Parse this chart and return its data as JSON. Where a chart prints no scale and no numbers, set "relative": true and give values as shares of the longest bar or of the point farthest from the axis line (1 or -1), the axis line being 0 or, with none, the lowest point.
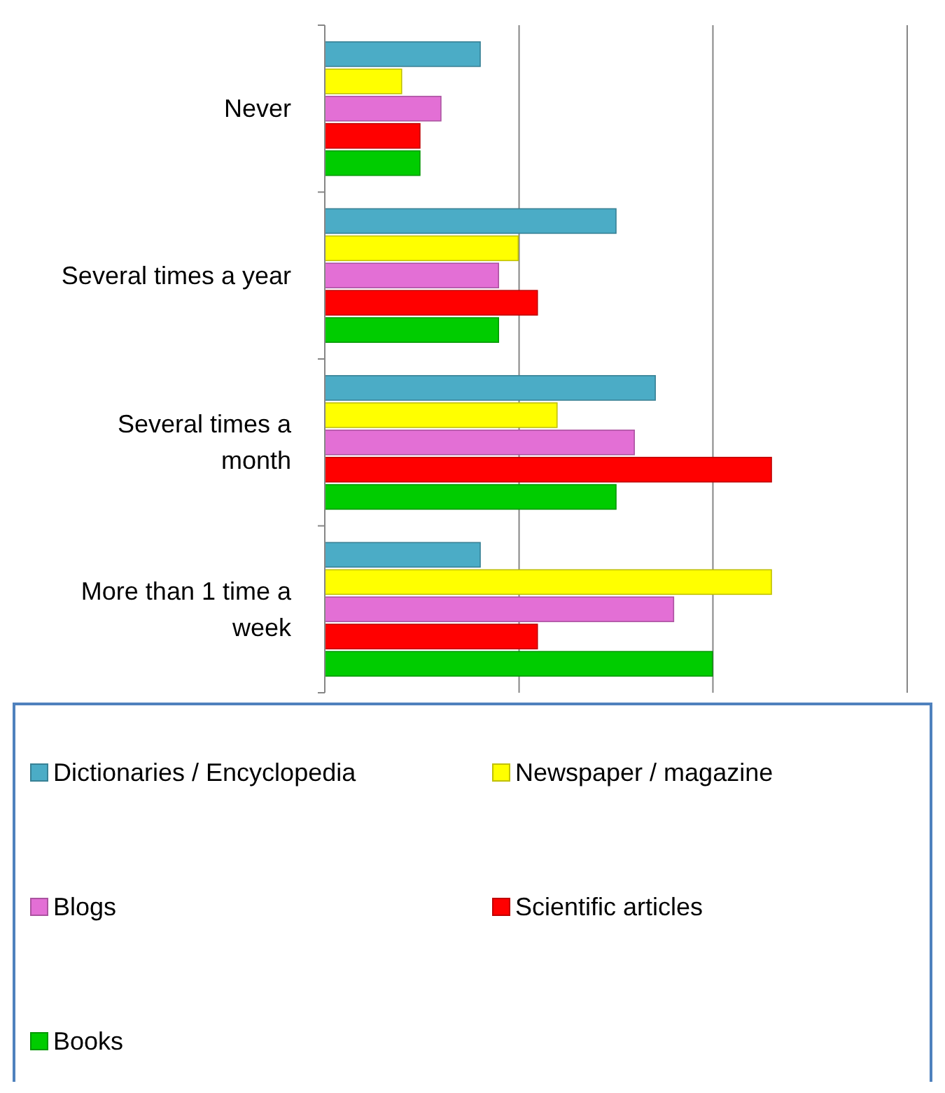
{
  "chart_data": {
    "type": "bar",
    "orientation": "horizontal",
    "relative": true,
    "ref_lines": [
      {
        "axis": "x",
        "value": 0.435,
        "color": "#868686"
      },
      {
        "axis": "x",
        "value": 0.869,
        "color": "#868686"
      },
      {
        "axis": "x",
        "value": 1.304,
        "color": "#868686"
      }
    ],
    "legend": "bottom",
    "categories": [
      "Never",
      "Several times a year",
      "Several times a month",
      "More than 1 time a week"
    ],
    "series": [
      {
        "name": "Dictionaries / Encyclopedia",
        "color": "#4bacc6",
        "values": [
          0.348,
          0.652,
          0.74,
          0.348
        ]
      },
      {
        "name": "Newspaper / magazine",
        "color": "#ffff00",
        "values": [
          0.172,
          0.433,
          0.52,
          1
        ]
      },
      {
        "name": "Blogs",
        "color": "#e36fd5",
        "values": [
          0.26,
          0.389,
          0.693,
          0.781
        ]
      },
      {
        "name": "Scientific articles",
        "color": "#ff0000",
        "values": [
          0.213,
          0.476,
          1,
          0.476
        ]
      },
      {
        "name": "Books",
        "color": "#00cc00",
        "values": [
          0.213,
          0.389,
          0.652,
          0.868
        ]
      }
    ]
  }
}
